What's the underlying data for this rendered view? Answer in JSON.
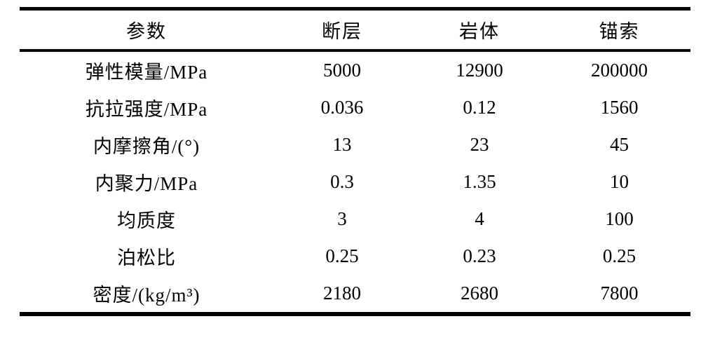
{
  "table": {
    "columns": [
      {
        "label": "参数"
      },
      {
        "label": "断层"
      },
      {
        "label": "岩体"
      },
      {
        "label": "锚索"
      }
    ],
    "rows": [
      {
        "label": "弹性模量/MPa",
        "values": [
          "5000",
          "12900",
          "200000"
        ]
      },
      {
        "label": "抗拉强度/MPa",
        "values": [
          "0.036",
          "0.12",
          "1560"
        ]
      },
      {
        "label": "内摩擦角/(°)",
        "values": [
          "13",
          "23",
          "45"
        ]
      },
      {
        "label": "内聚力/MPa",
        "values": [
          "0.3",
          "1.35",
          "10"
        ]
      },
      {
        "label": "均质度",
        "values": [
          "3",
          "4",
          "100"
        ]
      },
      {
        "label": "泊松比",
        "values": [
          "0.25",
          "0.23",
          "0.25"
        ]
      },
      {
        "label": "密度/(kg/m³)",
        "values": [
          "2180",
          "2680",
          "7800"
        ]
      }
    ]
  }
}
